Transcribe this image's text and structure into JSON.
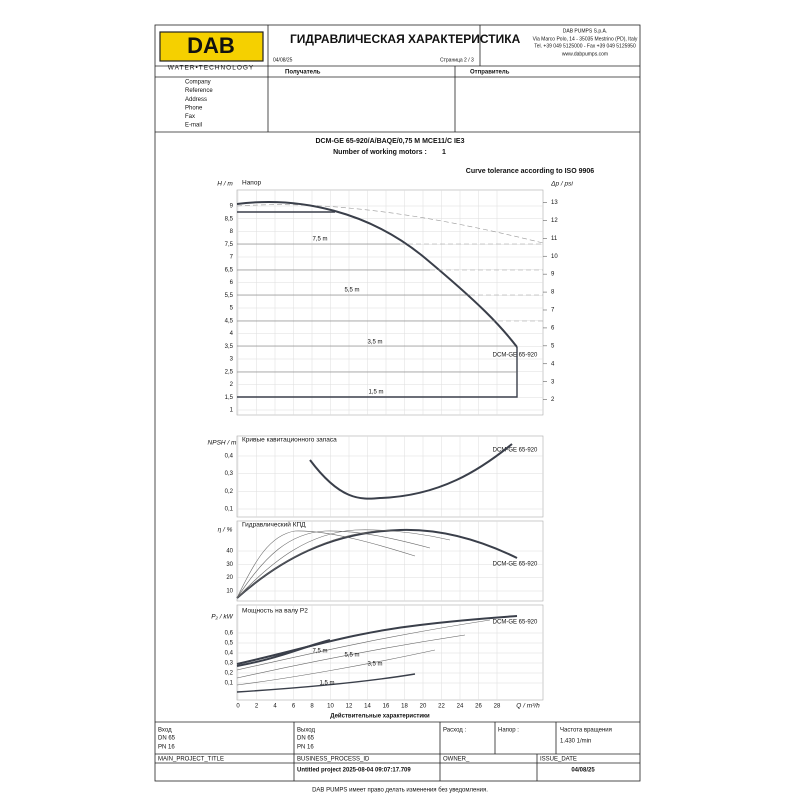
{
  "header": {
    "logo": "DAB",
    "logo_tagline": "WATER•TECHNOLOGY",
    "title": "ГИДРАВЛИЧЕСКАЯ ХАРАКТЕРИСТИКА",
    "date": "04/08/25",
    "page": "Страница 2 / 3",
    "company": [
      "DAB PUMPS S.p.A.",
      "Via Marco Polo, 14 - 35035 Mestrino (PD), Italy",
      "Tel. +39 049 5125000 - Fax +39 049 5125950",
      "www.dabpumps.com"
    ],
    "recipient": "Получатель",
    "sender": "Отправитель",
    "fields": [
      "Company",
      "Reference",
      "Address",
      "Phone",
      "Fax",
      "E-mail"
    ]
  },
  "product": {
    "model": "DCM-GE 65-920/A/BAQE/0,75 M MCE11/C IE3",
    "motors_label": "Number of working motors :",
    "motors": "1",
    "tolerance": "Curve tolerance according to ISO 9906"
  },
  "charts": {
    "x_label": "Q / m³/h",
    "x_title": "Действительные характеристики",
    "xticks": [
      0,
      2,
      4,
      6,
      8,
      10,
      12,
      14,
      16,
      18,
      20,
      22,
      24,
      26,
      28
    ],
    "head": {
      "y_label": "H / m",
      "y2_label": "Δp / psi",
      "title": "Напор",
      "pump_label": "DCM-GE 65-920",
      "curve_labels": [
        "7,5 m",
        "5,5 m",
        "3,5 m",
        "1,5 m"
      ],
      "yticks": [
        1,
        {
          "value": 1.5,
          "label": "1,5"
        },
        2,
        {
          "value": 2.5,
          "label": "2,5"
        },
        3,
        {
          "value": 3.5,
          "label": "3,5"
        },
        4,
        {
          "value": 4.5,
          "label": "4,5"
        },
        5,
        {
          "value": 5.5,
          "label": "5,5"
        },
        6,
        {
          "value": 6.5,
          "label": "6,5"
        },
        7,
        {
          "value": 7.5,
          "label": "7,5"
        },
        8,
        {
          "value": 8.5,
          "label": "8,5"
        },
        9
      ],
      "y2ticks": [
        2,
        3,
        4,
        5,
        6,
        7,
        8,
        9,
        10,
        11,
        12,
        13
      ]
    },
    "npsh": {
      "y_label": "NPSH / m",
      "title": "Кривые кавитационного запаса",
      "pump_label": "DCM-GE 65-920",
      "yticks": [
        {
          "value": 0.1,
          "label": "0,1"
        },
        {
          "value": 0.2,
          "label": "0,2"
        },
        {
          "value": 0.3,
          "label": "0,3"
        },
        {
          "value": 0.4,
          "label": "0,4"
        }
      ]
    },
    "efficiency": {
      "y_label": "η / %",
      "title": "Гидравлический КПД",
      "pump_label": "DCM-GE 65-920",
      "yticks": [
        10,
        20,
        30,
        40
      ]
    },
    "power": {
      "y_label": "P₂ / kW",
      "title": "Мощность на валу P2",
      "pump_label": "DCM-GE 65-920",
      "curve_labels": [
        "7,5 m",
        "5,5 m",
        "3,5 m",
        "1,5 m"
      ],
      "yticks": [
        {
          "value": 0.1,
          "label": "0,1"
        },
        {
          "value": 0.2,
          "label": "0,2"
        },
        {
          "value": 0.3,
          "label": "0,3"
        },
        {
          "value": 0.4,
          "label": "0,4"
        },
        {
          "value": 0.5,
          "label": "0,5"
        },
        {
          "value": 0.6,
          "label": "0,6"
        }
      ]
    }
  },
  "table": {
    "inlet": "Вход",
    "inlet_dn": "DN 65",
    "inlet_pn": "PN 16",
    "outlet": "Выход",
    "outlet_dn": "DN 65",
    "outlet_pn": "PN 16",
    "flow": "Расход :",
    "head": "Напор :",
    "speed": "Частота вращения",
    "speed_value": "1.430 1/min",
    "project_title": "MAIN_PROJECT_TITLE",
    "process_id": "BUSINESS_PROCESS_ID",
    "project": "Untitled project 2025-08-04 09:07:17.709",
    "owner": "OWNER_",
    "issue_date_label": "ISSUE_DATE",
    "issue_date": "04/08/25"
  },
  "footer": "DAB PUMPS имеет право делать изменения без уведомления."
}
